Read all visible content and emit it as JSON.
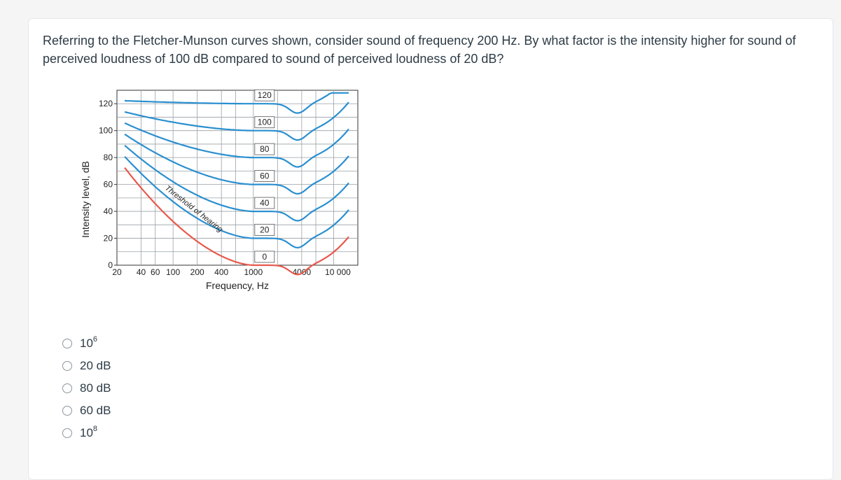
{
  "question": {
    "text": "Referring to the Fletcher-Munson curves shown, consider sound of frequency 200 Hz. By what factor is the intensity higher for sound of perceived loudness of 100 dB compared to sound of perceived loudness of 20 dB?"
  },
  "chart_data": {
    "type": "line",
    "xscale": "log",
    "xlim": [
      20,
      20000
    ],
    "ylim": [
      0,
      130
    ],
    "xlabel": "Frequency, Hz",
    "ylabel": "Intensity level, dB",
    "yticks": [
      "120",
      "100",
      "80",
      "60",
      "40",
      "20",
      "0"
    ],
    "xticks": [
      "20",
      "40",
      "60",
      "100",
      "200",
      "400",
      "1000",
      "4000",
      "10 000"
    ],
    "annotation": "Threshold of hearing",
    "curve_labels": [
      "120",
      "100",
      "80",
      "60",
      "40",
      "20",
      "0"
    ],
    "colors": {
      "loudness": "#2a8fd0",
      "threshold": "#e8584c"
    }
  },
  "options": [
    {
      "base": "10",
      "sup": "6",
      "unit": ""
    },
    {
      "base": "20 dB",
      "sup": "",
      "unit": ""
    },
    {
      "base": "80 dB",
      "sup": "",
      "unit": ""
    },
    {
      "base": "60 dB",
      "sup": "",
      "unit": ""
    },
    {
      "base": "10",
      "sup": "8",
      "unit": ""
    }
  ]
}
